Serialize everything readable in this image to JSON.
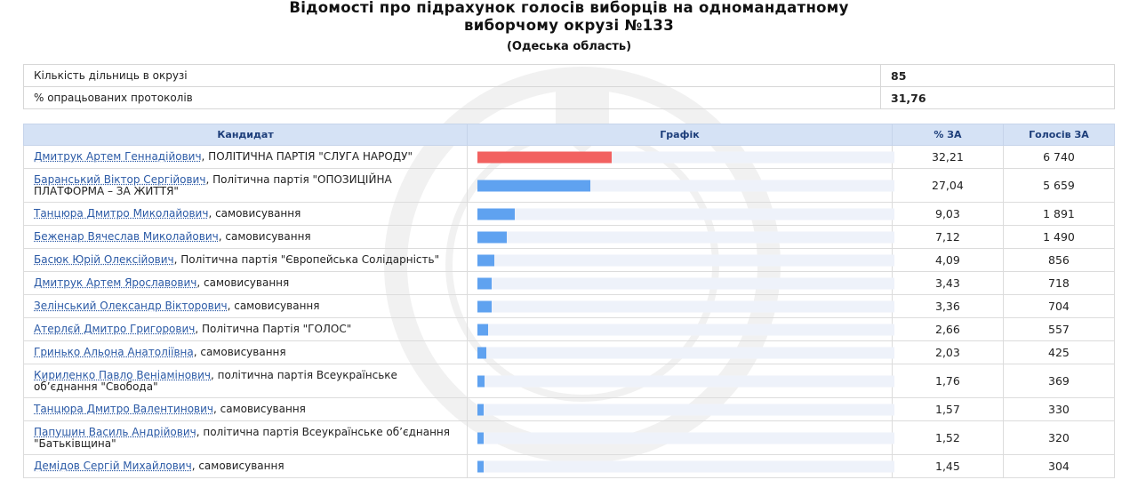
{
  "header": {
    "title_line1": "Відомості про підрахунок голосів виборців на одномандатному",
    "title_line2": "виборчому окрузі №133",
    "region": "(Одеська область)"
  },
  "summary": [
    {
      "label": "Кількість дільниць в окрузі",
      "value": "85"
    },
    {
      "label": "% опрацьованих протоколів",
      "value": "31,76"
    }
  ],
  "table": {
    "headers": {
      "candidate": "Кандидат",
      "graph": "Графік",
      "pct": "% ЗА",
      "votes": "Голосів ЗА"
    },
    "colors": {
      "leader_bar": "#f26160",
      "bar": "#5fa2f0",
      "track": "#eef2fa",
      "header_bg": "#d5e2f5"
    },
    "rows": [
      {
        "name": "Дмитрук Артем Геннадійович",
        "party": ", ПОЛІТИЧНА ПАРТІЯ \"СЛУГА НАРОДУ\"",
        "pct": "32,21",
        "share": 32.21,
        "votes": "6 740",
        "leader": true
      },
      {
        "name": "Баранський Віктор Сергійович",
        "party": ", Політична партія \"ОПОЗИЦІЙНА ПЛАТФОРМА – ЗА ЖИТТЯ\"",
        "pct": "27,04",
        "share": 27.04,
        "votes": "5 659",
        "tall": true
      },
      {
        "name": "Танцюра Дмитро Миколайович",
        "party": ", самовисування",
        "pct": "9,03",
        "share": 9.03,
        "votes": "1 891"
      },
      {
        "name": "Беженар Вячеслав Миколайович",
        "party": ", самовисування",
        "pct": "7,12",
        "share": 7.12,
        "votes": "1 490"
      },
      {
        "name": "Басюк Юрій Олексійович",
        "party": ", Політична партія \"Європейська Солідарність\"",
        "pct": "4,09",
        "share": 4.09,
        "votes": "856"
      },
      {
        "name": "Дмитрук Артем Ярославович",
        "party": ", самовисування",
        "pct": "3,43",
        "share": 3.43,
        "votes": "718"
      },
      {
        "name": "Зелінський Олександр Вікторович",
        "party": ", самовисування",
        "pct": "3,36",
        "share": 3.36,
        "votes": "704"
      },
      {
        "name": "Атерлєй Дмитро Григорович",
        "party": ", Політична Партія \"ГОЛОС\"",
        "pct": "2,66",
        "share": 2.66,
        "votes": "557"
      },
      {
        "name": "Гринько Альона Анатоліївна",
        "party": ", самовисування",
        "pct": "2,03",
        "share": 2.03,
        "votes": "425"
      },
      {
        "name": "Кириленко Павло Веніамінович",
        "party": ", політична партія Всеукраїнське об’єднання \"Свобода\"",
        "pct": "1,76",
        "share": 1.76,
        "votes": "369",
        "tall": true
      },
      {
        "name": "Танцюра Дмитро Валентинович",
        "party": ", самовисування",
        "pct": "1,57",
        "share": 1.57,
        "votes": "330"
      },
      {
        "name": "Папушин Василь Андрійович",
        "party": ", політична партія Всеукраїнське об’єднання \"Батьківщина\"",
        "pct": "1,52",
        "share": 1.52,
        "votes": "320",
        "tall": true
      },
      {
        "name": "Демідов Сергій Михайлович",
        "party": ", самовисування",
        "pct": "1,45",
        "share": 1.45,
        "votes": "304"
      }
    ]
  }
}
